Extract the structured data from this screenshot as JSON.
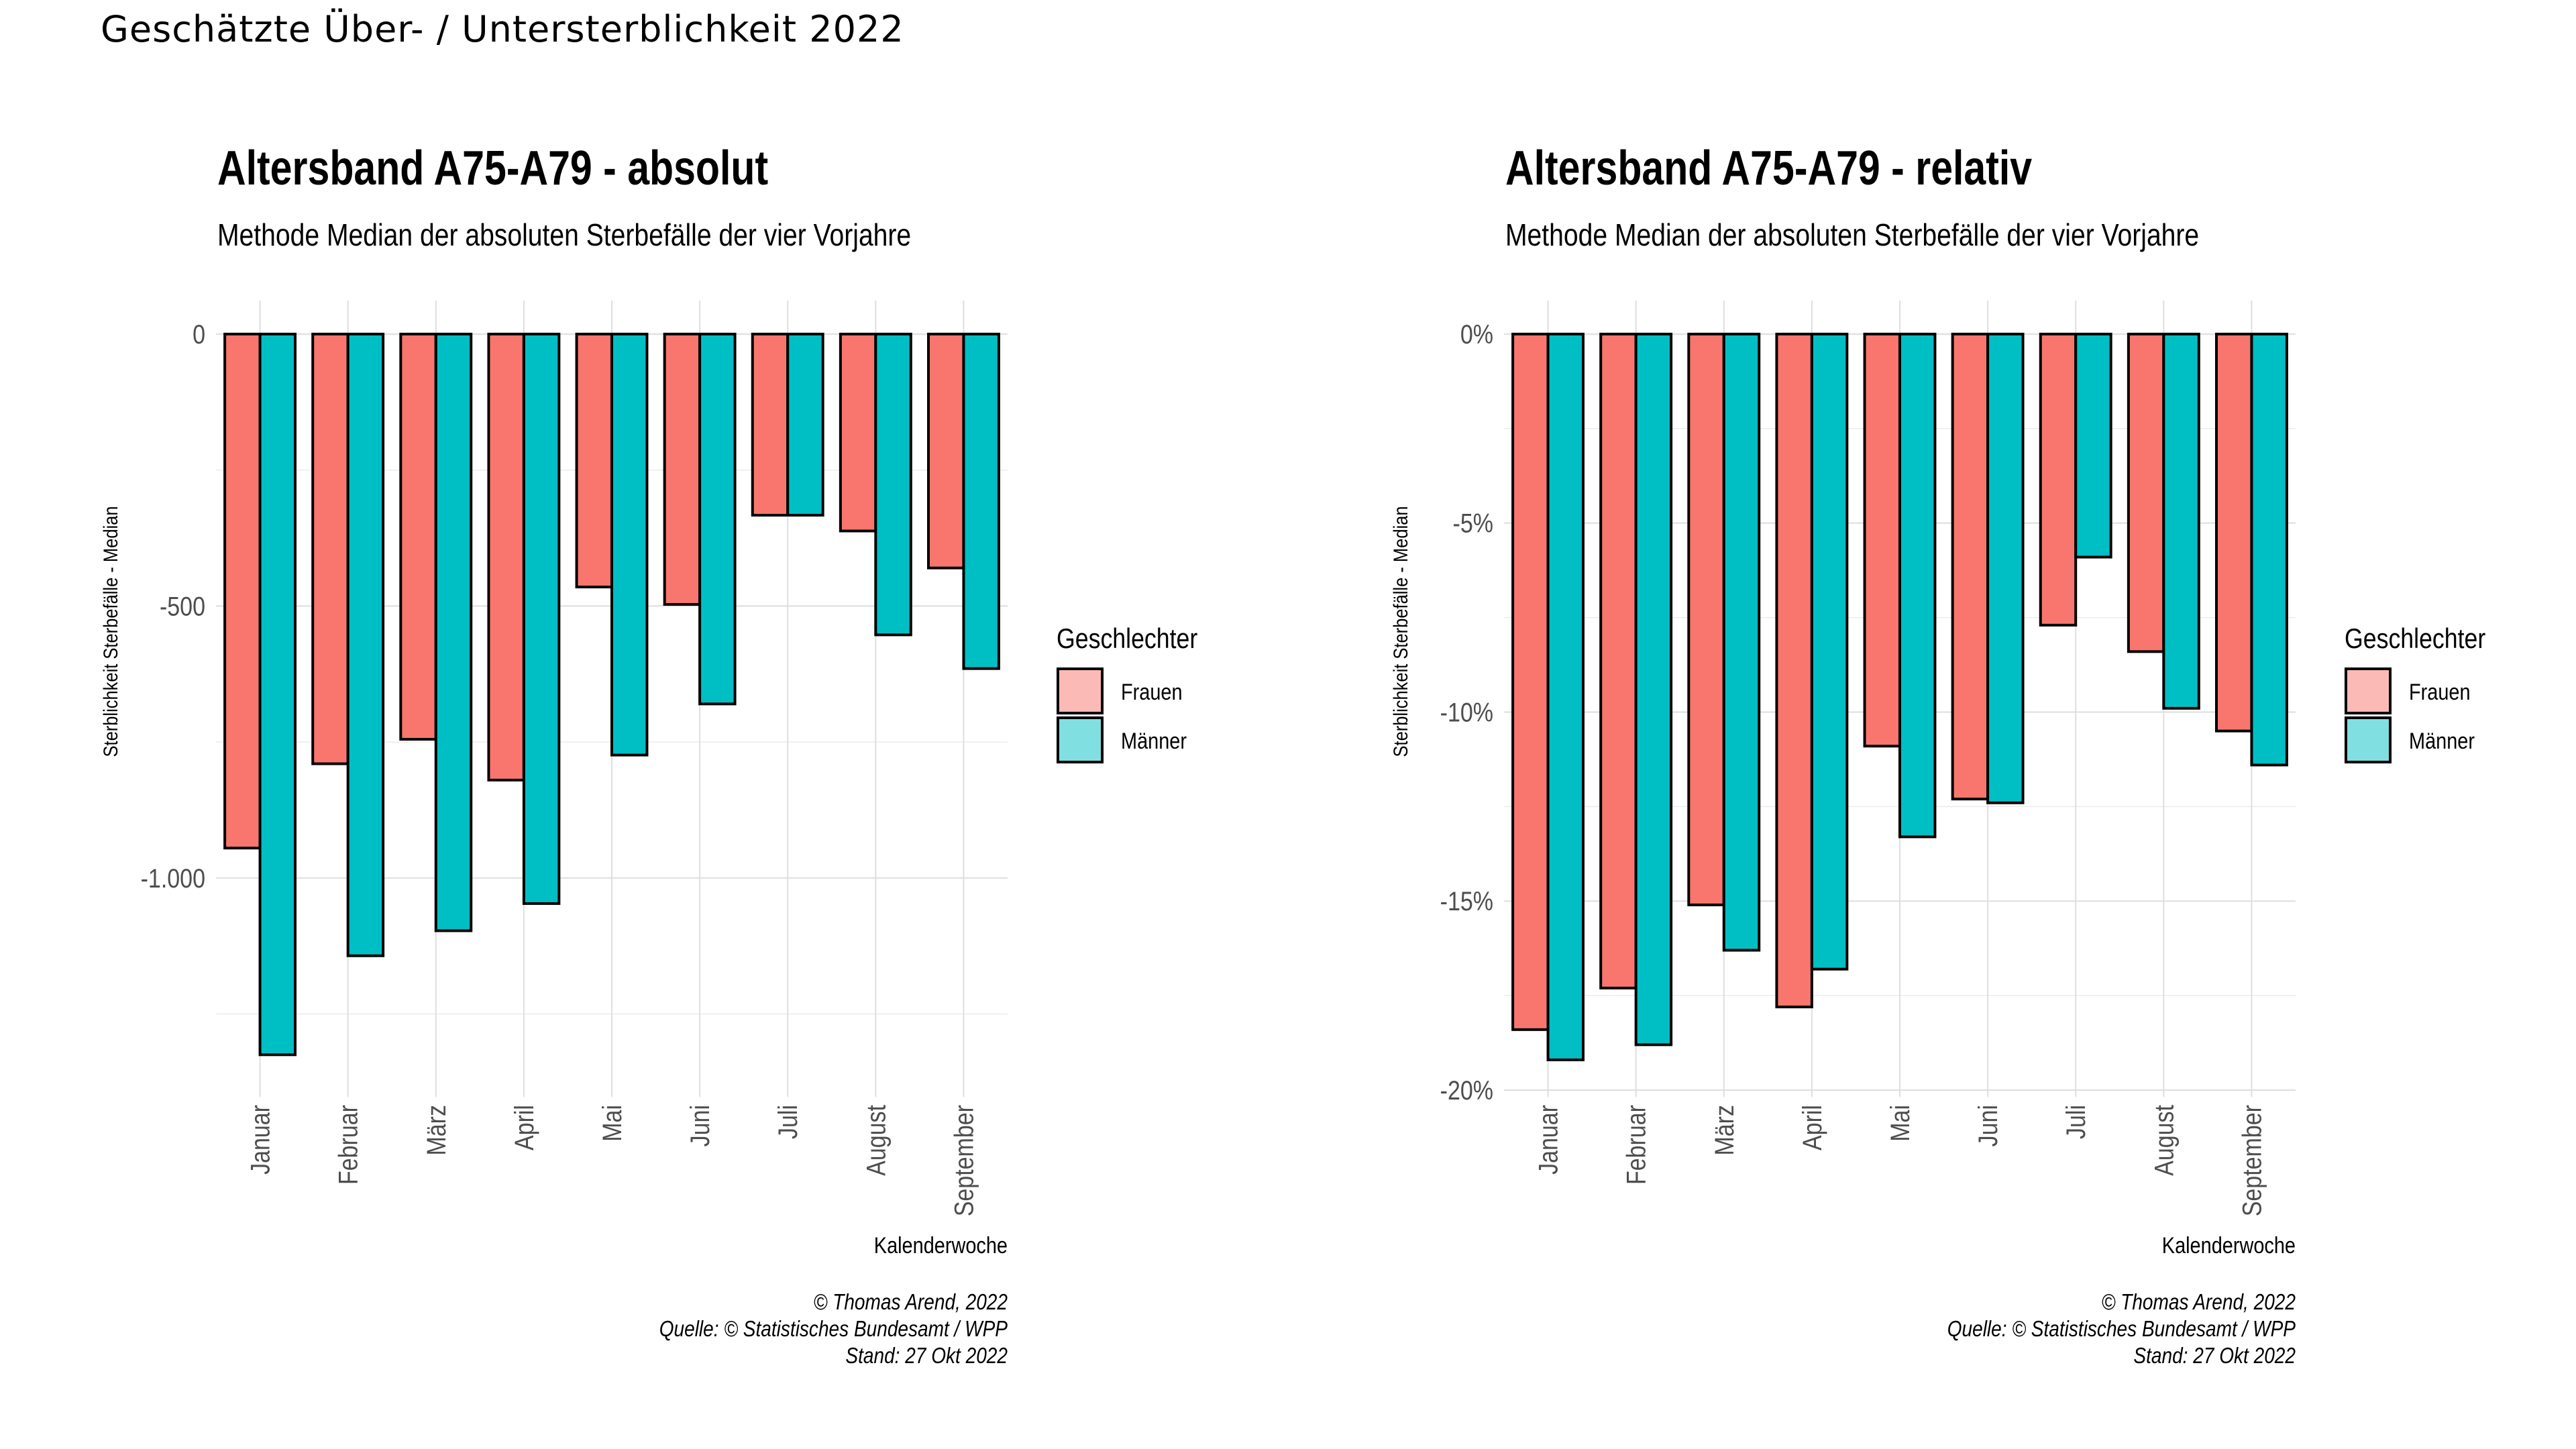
{
  "page_title": "Geschätzte Über- / Untersterblichkeit 2022",
  "legend": {
    "title": "Geschlechter",
    "items": [
      {
        "label": "Frauen",
        "color": "#F8766D",
        "key_color": "#FBBAB6"
      },
      {
        "label": "Männer",
        "color": "#00BFC4",
        "key_color": "#80DFE1"
      }
    ]
  },
  "caption": {
    "line1": "© Thomas Arend, 2022",
    "line2": "Quelle: © Statistisches Bundesamt / WPP",
    "line3": "Stand: 27 Okt 2022"
  },
  "chart_data": [
    {
      "type": "bar",
      "title": "Altersband A75-A79 - absolut",
      "subtitle": "Methode Median der absoluten Sterbefälle der vier Vorjahre",
      "xlabel": "Kalenderwoche",
      "ylabel": "Sterblichkeit Sterbefälle - Median",
      "categories": [
        "Januar",
        "Februar",
        "März",
        "April",
        "Mai",
        "Juni",
        "Juli",
        "August",
        "September"
      ],
      "series": [
        {
          "name": "Frauen",
          "values": [
            -945,
            -790,
            -745,
            -820,
            -465,
            -497,
            -333,
            -362,
            -430
          ]
        },
        {
          "name": "Männer",
          "values": [
            -1325,
            -1143,
            -1097,
            -1047,
            -774,
            -680,
            -333,
            -553,
            -615
          ]
        }
      ],
      "ylim": [
        -1390,
        0
      ],
      "yticks": [
        0,
        -500,
        -1000
      ],
      "ytick_labels": [
        "0",
        "-500",
        "-1.000"
      ],
      "grid": true,
      "legend_position": "right"
    },
    {
      "type": "bar",
      "title": "Altersband A75-A79 - relativ",
      "subtitle": "Methode Median der absoluten Sterbefälle der vier Vorjahre",
      "xlabel": "Kalenderwoche",
      "ylabel": "Sterblichkeit Sterbefälle - Median",
      "categories": [
        "Januar",
        "Februar",
        "März",
        "April",
        "Mai",
        "Juni",
        "Juli",
        "August",
        "September"
      ],
      "series": [
        {
          "name": "Frauen",
          "values": [
            -18.4,
            -17.3,
            -15.1,
            -17.8,
            -10.9,
            -12.3,
            -7.7,
            -8.4,
            -10.5
          ]
        },
        {
          "name": "Männer",
          "values": [
            -19.2,
            -18.8,
            -16.3,
            -16.8,
            -13.3,
            -12.4,
            -5.9,
            -9.9,
            -11.4
          ]
        }
      ],
      "ylim": [
        -20,
        0
      ],
      "yticks": [
        0,
        -5,
        -10,
        -15,
        -20
      ],
      "ytick_labels": [
        "0%",
        "-5%",
        "-10%",
        "-15%",
        "-20%"
      ],
      "grid": true,
      "legend_position": "right"
    }
  ]
}
